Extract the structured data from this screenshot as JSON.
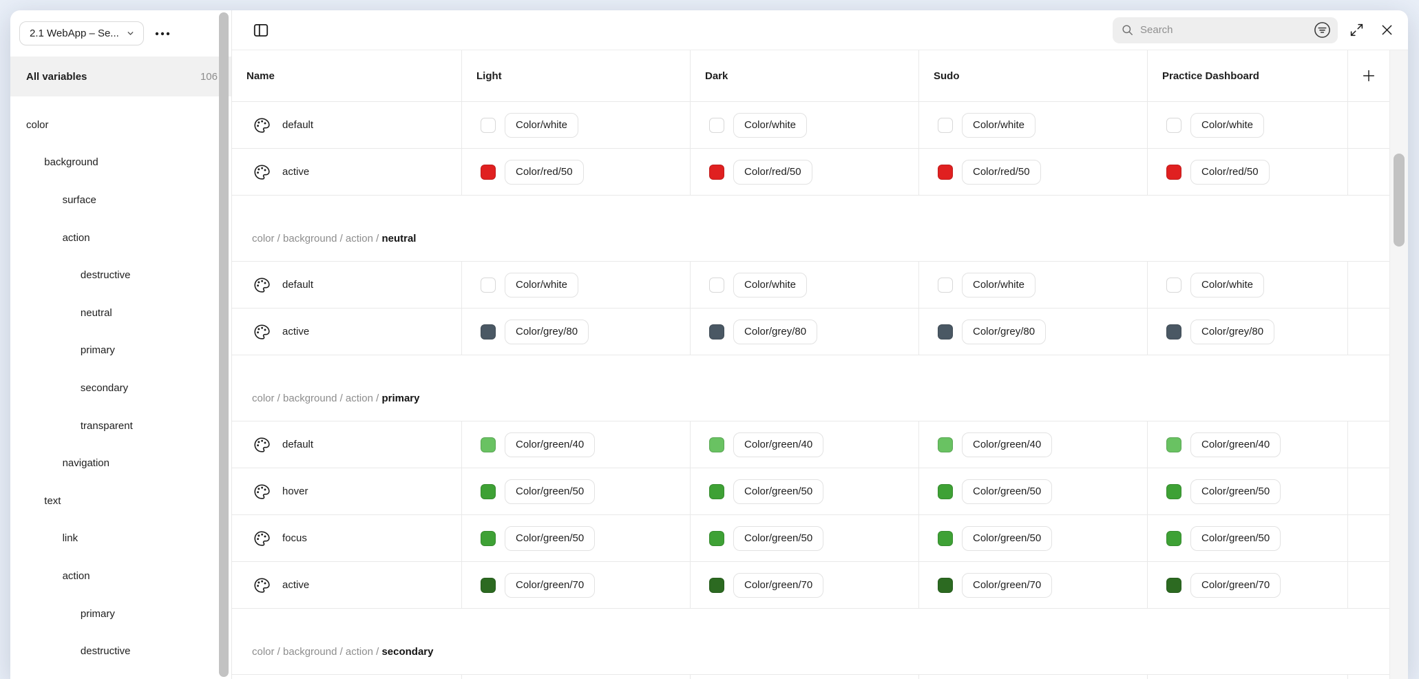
{
  "sidebar": {
    "collection_button": {
      "label": "2.1 WebApp – Se..."
    },
    "all_variables": {
      "label": "All variables",
      "count": "106"
    },
    "tree": [
      {
        "label": "color",
        "level": 1
      },
      {
        "label": "background",
        "level": 2
      },
      {
        "label": "surface",
        "level": 3
      },
      {
        "label": "action",
        "level": 3
      },
      {
        "label": "destructive",
        "level": 4
      },
      {
        "label": "neutral",
        "level": 4
      },
      {
        "label": "primary",
        "level": 4
      },
      {
        "label": "secondary",
        "level": 4
      },
      {
        "label": "transparent",
        "level": 4
      },
      {
        "label": "navigation",
        "level": 3
      },
      {
        "label": "text",
        "level": 2
      },
      {
        "label": "link",
        "level": 3
      },
      {
        "label": "action",
        "level": 3
      },
      {
        "label": "primary",
        "level": 4
      },
      {
        "label": "destructive",
        "level": 4
      }
    ]
  },
  "topbar": {
    "search_placeholder": "Search"
  },
  "table": {
    "columns": [
      "Name",
      "Light",
      "Dark",
      "Sudo",
      "Practice Dashboard"
    ],
    "mode_columns": [
      "Light",
      "Dark",
      "Sudo",
      "Practice Dashboard"
    ],
    "groups": [
      {
        "path": null,
        "rows": [
          {
            "name": "default",
            "token": "Color/white",
            "swatch": "#ffffff",
            "white": true
          },
          {
            "name": "active",
            "token": "Color/red/50",
            "swatch": "#e02020"
          }
        ]
      },
      {
        "path": {
          "prefix": "color / background / action / ",
          "last": "neutral"
        },
        "rows": [
          {
            "name": "default",
            "token": "Color/white",
            "swatch": "#ffffff",
            "white": true
          },
          {
            "name": "active",
            "token": "Color/grey/80",
            "swatch": "#4a5864"
          }
        ]
      },
      {
        "path": {
          "prefix": "color / background / action / ",
          "last": "primary"
        },
        "rows": [
          {
            "name": "default",
            "token": "Color/green/40",
            "swatch": "#69c262"
          },
          {
            "name": "hover",
            "token": "Color/green/50",
            "swatch": "#3ea135"
          },
          {
            "name": "focus",
            "token": "Color/green/50",
            "swatch": "#3ea135"
          },
          {
            "name": "active",
            "token": "Color/green/70",
            "swatch": "#2c6a21"
          }
        ]
      },
      {
        "path": {
          "prefix": "color / background / action / ",
          "last": "secondary"
        },
        "rows": []
      }
    ]
  },
  "colors": {
    "background": "#e9eff8",
    "red_50": "#e02020",
    "grey_80": "#4a5864",
    "green_40": "#69c262",
    "green_50": "#3ea135",
    "green_70": "#2c6a21",
    "white": "#ffffff"
  }
}
